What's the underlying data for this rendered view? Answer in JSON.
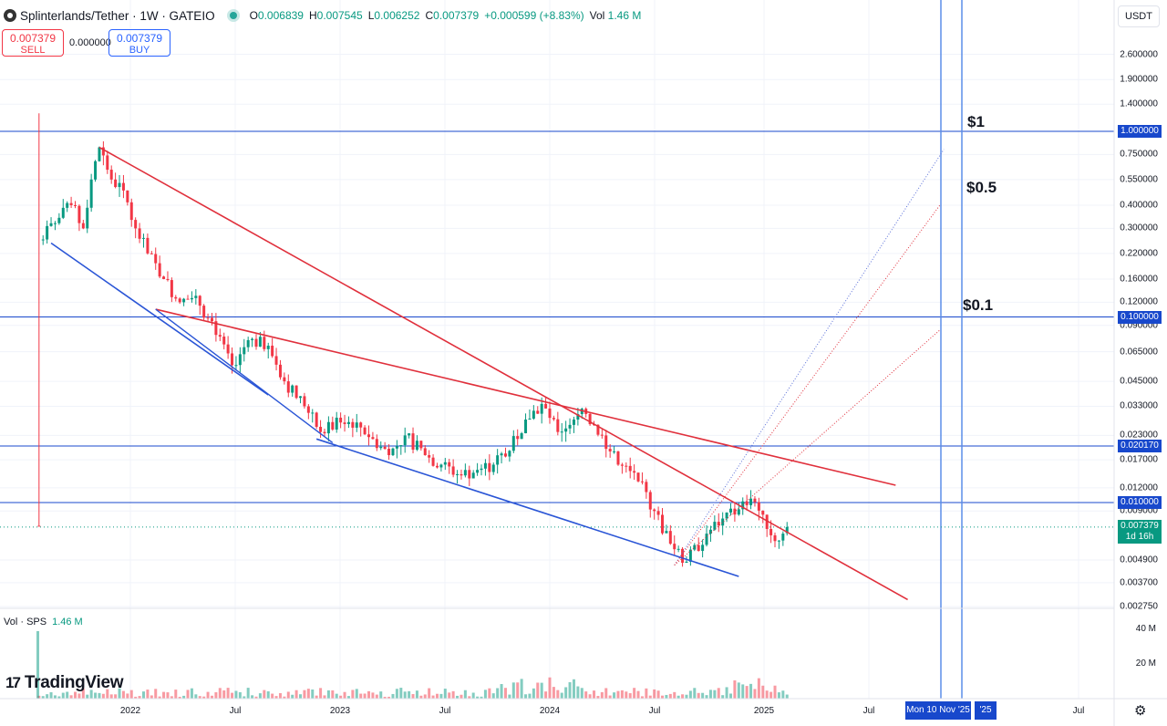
{
  "header": {
    "symbol_title": "Splinterlands/Tether · 1W · GATEIO",
    "open": "0.006839",
    "high": "0.007545",
    "low": "0.006252",
    "close": "0.007379",
    "change": "+0.000599 (+8.83%)",
    "vol": "1.46 M"
  },
  "trade": {
    "sell_price": "0.007379",
    "sell_label": "SELL",
    "spread": "0.000000",
    "buy_price": "0.007379",
    "buy_label": "BUY"
  },
  "currency": "USDT",
  "price_axis": [
    "2.600000",
    "1.900000",
    "1.400000",
    "0.750000",
    "0.550000",
    "0.400000",
    "0.300000",
    "0.220000",
    "0.160000",
    "0.120000",
    "0.090000",
    "0.065000",
    "0.045000",
    "0.033000",
    "0.023000",
    "0.017000",
    "0.012000",
    "0.009000",
    "0.004900",
    "0.003700",
    "0.002750"
  ],
  "level_labels": [
    "1.000000",
    "0.100000",
    "0.020170",
    "0.010000"
  ],
  "current_price_box": {
    "price": "0.007379",
    "countdown": "1d 16h"
  },
  "annotations": [
    "$1",
    "$0.5",
    "$0.1"
  ],
  "time_axis": [
    "2022",
    "Jul",
    "2023",
    "Jul",
    "2024",
    "Jul",
    "2025",
    "Jul",
    "Jul"
  ],
  "time_selected": "Mon 10 Nov '25",
  "time_selected_partial": "'25",
  "volume": {
    "title": "Vol · SPS",
    "value": "1.46 M",
    "axis": [
      "40 M",
      "20 M"
    ]
  },
  "logo_text": "TradingView",
  "colors": {
    "up": "#089981",
    "down": "#f23645",
    "trend_red": "#e0303c",
    "trend_blue": "#2a55d6",
    "level": "#1848cc"
  },
  "chart_data": {
    "type": "candlestick",
    "symbol": "SPS/USDT",
    "interval": "1W",
    "y_scale": "log",
    "ylim": [
      0.0025,
      3.0
    ],
    "horizontal_levels": [
      1.0,
      0.1,
      0.02017,
      0.01
    ],
    "weekly_close_path": [
      [
        "2021-07-26",
        0.0075,
        0.0075,
        1.25,
        0.0075
      ],
      [
        "2021-08-02",
        0.26,
        0.42,
        0.2,
        0.32
      ],
      [
        "2021-08-30",
        0.32,
        0.52,
        0.24,
        0.4
      ],
      [
        "2021-09-27",
        0.4,
        0.55,
        0.28,
        0.3
      ],
      [
        "2021-10-18",
        0.3,
        0.62,
        0.25,
        0.55
      ],
      [
        "2021-11-01",
        0.55,
        0.95,
        0.5,
        0.82
      ],
      [
        "2021-11-15",
        0.82,
        0.9,
        0.5,
        0.55
      ],
      [
        "2021-12-06",
        0.55,
        0.6,
        0.4,
        0.48
      ],
      [
        "2021-12-27",
        0.48,
        0.52,
        0.28,
        0.3
      ],
      [
        "2022-01-17",
        0.3,
        0.32,
        0.2,
        0.22
      ],
      [
        "2022-02-07",
        0.22,
        0.24,
        0.14,
        0.16
      ],
      [
        "2022-03-07",
        0.16,
        0.17,
        0.1,
        0.12
      ],
      [
        "2022-04-04",
        0.12,
        0.14,
        0.1,
        0.13
      ],
      [
        "2022-05-02",
        0.13,
        0.13,
        0.07,
        0.08
      ],
      [
        "2022-06-06",
        0.08,
        0.09,
        0.05,
        0.055
      ],
      [
        "2022-07-04",
        0.055,
        0.08,
        0.05,
        0.075
      ],
      [
        "2022-08-01",
        0.075,
        0.09,
        0.06,
        0.07
      ],
      [
        "2022-09-05",
        0.07,
        0.072,
        0.04,
        0.045
      ],
      [
        "2022-10-03",
        0.045,
        0.047,
        0.03,
        0.033
      ],
      [
        "2022-11-07",
        0.033,
        0.034,
        0.021,
        0.024
      ],
      [
        "2022-12-05",
        0.024,
        0.03,
        0.023,
        0.027
      ],
      [
        "2023-01-09",
        0.027,
        0.029,
        0.025,
        0.027
      ],
      [
        "2023-02-06",
        0.027,
        0.028,
        0.021,
        0.022
      ],
      [
        "2023-03-06",
        0.022,
        0.023,
        0.017,
        0.018
      ],
      [
        "2023-04-03",
        0.018,
        0.025,
        0.017,
        0.023
      ],
      [
        "2023-05-01",
        0.023,
        0.024,
        0.017,
        0.018
      ],
      [
        "2023-06-05",
        0.018,
        0.019,
        0.015,
        0.016
      ],
      [
        "2023-07-03",
        0.016,
        0.017,
        0.013,
        0.014
      ],
      [
        "2023-08-07",
        0.014,
        0.016,
        0.013,
        0.015
      ],
      [
        "2023-09-04",
        0.015,
        0.016,
        0.014,
        0.016
      ],
      [
        "2023-10-02",
        0.016,
        0.02,
        0.015,
        0.019
      ],
      [
        "2023-10-30",
        0.019,
        0.03,
        0.018,
        0.028
      ],
      [
        "2023-11-27",
        0.028,
        0.038,
        0.026,
        0.034
      ],
      [
        "2023-12-25",
        0.034,
        0.035,
        0.022,
        0.024
      ],
      [
        "2024-01-22",
        0.024,
        0.032,
        0.023,
        0.028
      ],
      [
        "2024-02-19",
        0.028,
        0.04,
        0.026,
        0.03
      ],
      [
        "2024-03-11",
        0.03,
        0.031,
        0.022,
        0.023
      ],
      [
        "2024-04-08",
        0.023,
        0.024,
        0.015,
        0.016
      ],
      [
        "2024-05-06",
        0.016,
        0.017,
        0.012,
        0.013
      ],
      [
        "2024-06-10",
        0.013,
        0.013,
        0.0085,
        0.009
      ],
      [
        "2024-07-08",
        0.009,
        0.0095,
        0.0055,
        0.006
      ],
      [
        "2024-08-05",
        0.006,
        0.0065,
        0.0044,
        0.0048
      ],
      [
        "2024-09-02",
        0.0048,
        0.0072,
        0.0046,
        0.0068
      ],
      [
        "2024-10-07",
        0.0068,
        0.0088,
        0.0062,
        0.0082
      ],
      [
        "2024-11-04",
        0.0082,
        0.0098,
        0.008,
        0.0092
      ],
      [
        "2024-12-02",
        0.0092,
        0.0115,
        0.009,
        0.0105
      ],
      [
        "2024-12-23",
        0.0105,
        0.011,
        0.0082,
        0.0086
      ],
      [
        "2025-01-13",
        0.0086,
        0.009,
        0.0045,
        0.0062
      ],
      [
        "2025-02-03",
        0.0062,
        0.0075,
        0.0058,
        0.0068
      ],
      [
        "2025-02-17",
        0.006839,
        0.007545,
        0.006252,
        0.007379
      ]
    ]
  }
}
